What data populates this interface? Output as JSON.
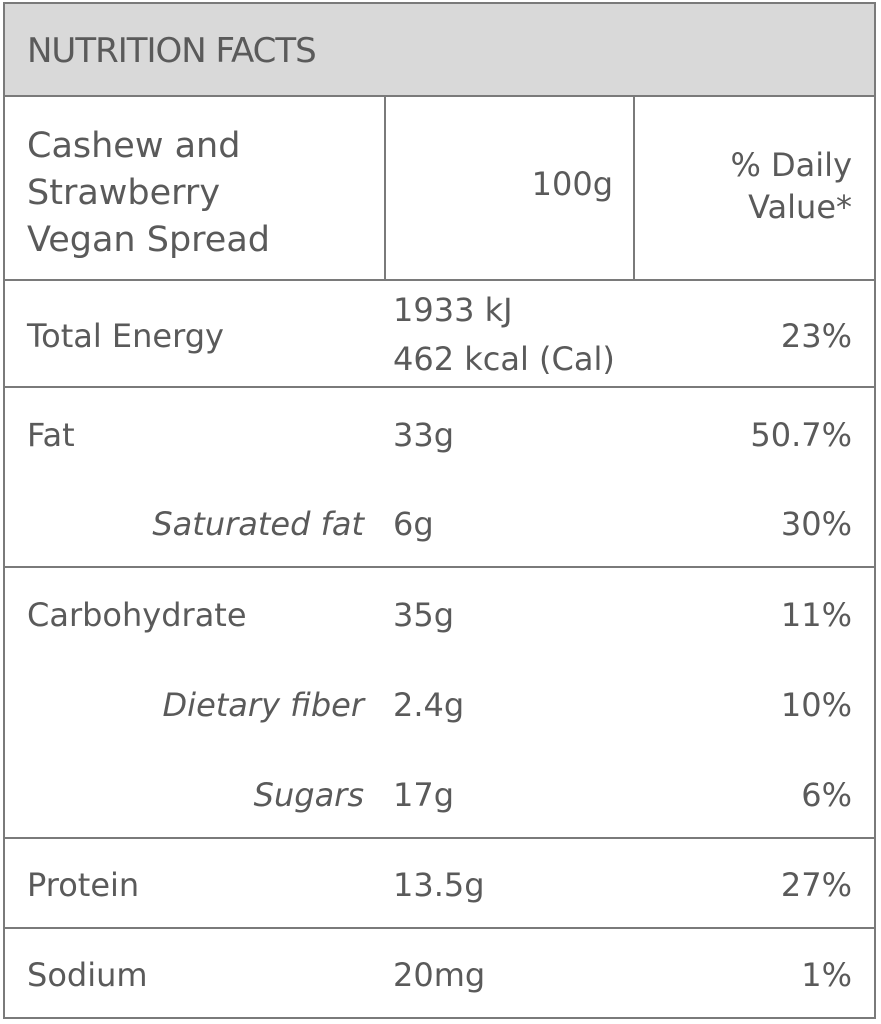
{
  "header": {
    "title": "NUTRITION FACTS"
  },
  "product": {
    "name_lines": [
      "Cashew and",
      "Strawberry",
      "Vegan Spread"
    ],
    "serving": "100g",
    "dv_lines": [
      "% Daily",
      "Value*"
    ]
  },
  "rows": {
    "energy": {
      "label": "Total  Energy",
      "amount_kj": "1933 kJ",
      "amount_kcal": "462 kcal (Cal)",
      "dv": "23%"
    },
    "fat": {
      "label": "Fat",
      "amount": "33g",
      "dv": "50.7%"
    },
    "saturated_fat": {
      "label": "Saturated fat",
      "amount": "6g",
      "dv": "30%"
    },
    "carbohydrate": {
      "label": "Carbohydrate",
      "amount": "35g",
      "dv": "11%"
    },
    "dietary_fiber": {
      "label": "Dietary fiber",
      "amount": "2.4g",
      "dv": "10%"
    },
    "sugars": {
      "label": "Sugars",
      "amount": "17g",
      "dv": "6%"
    },
    "protein": {
      "label": "Protein",
      "amount": "13.5g",
      "dv": "27%"
    },
    "sodium": {
      "label": "Sodium",
      "amount": "20mg",
      "dv": "1%"
    }
  }
}
